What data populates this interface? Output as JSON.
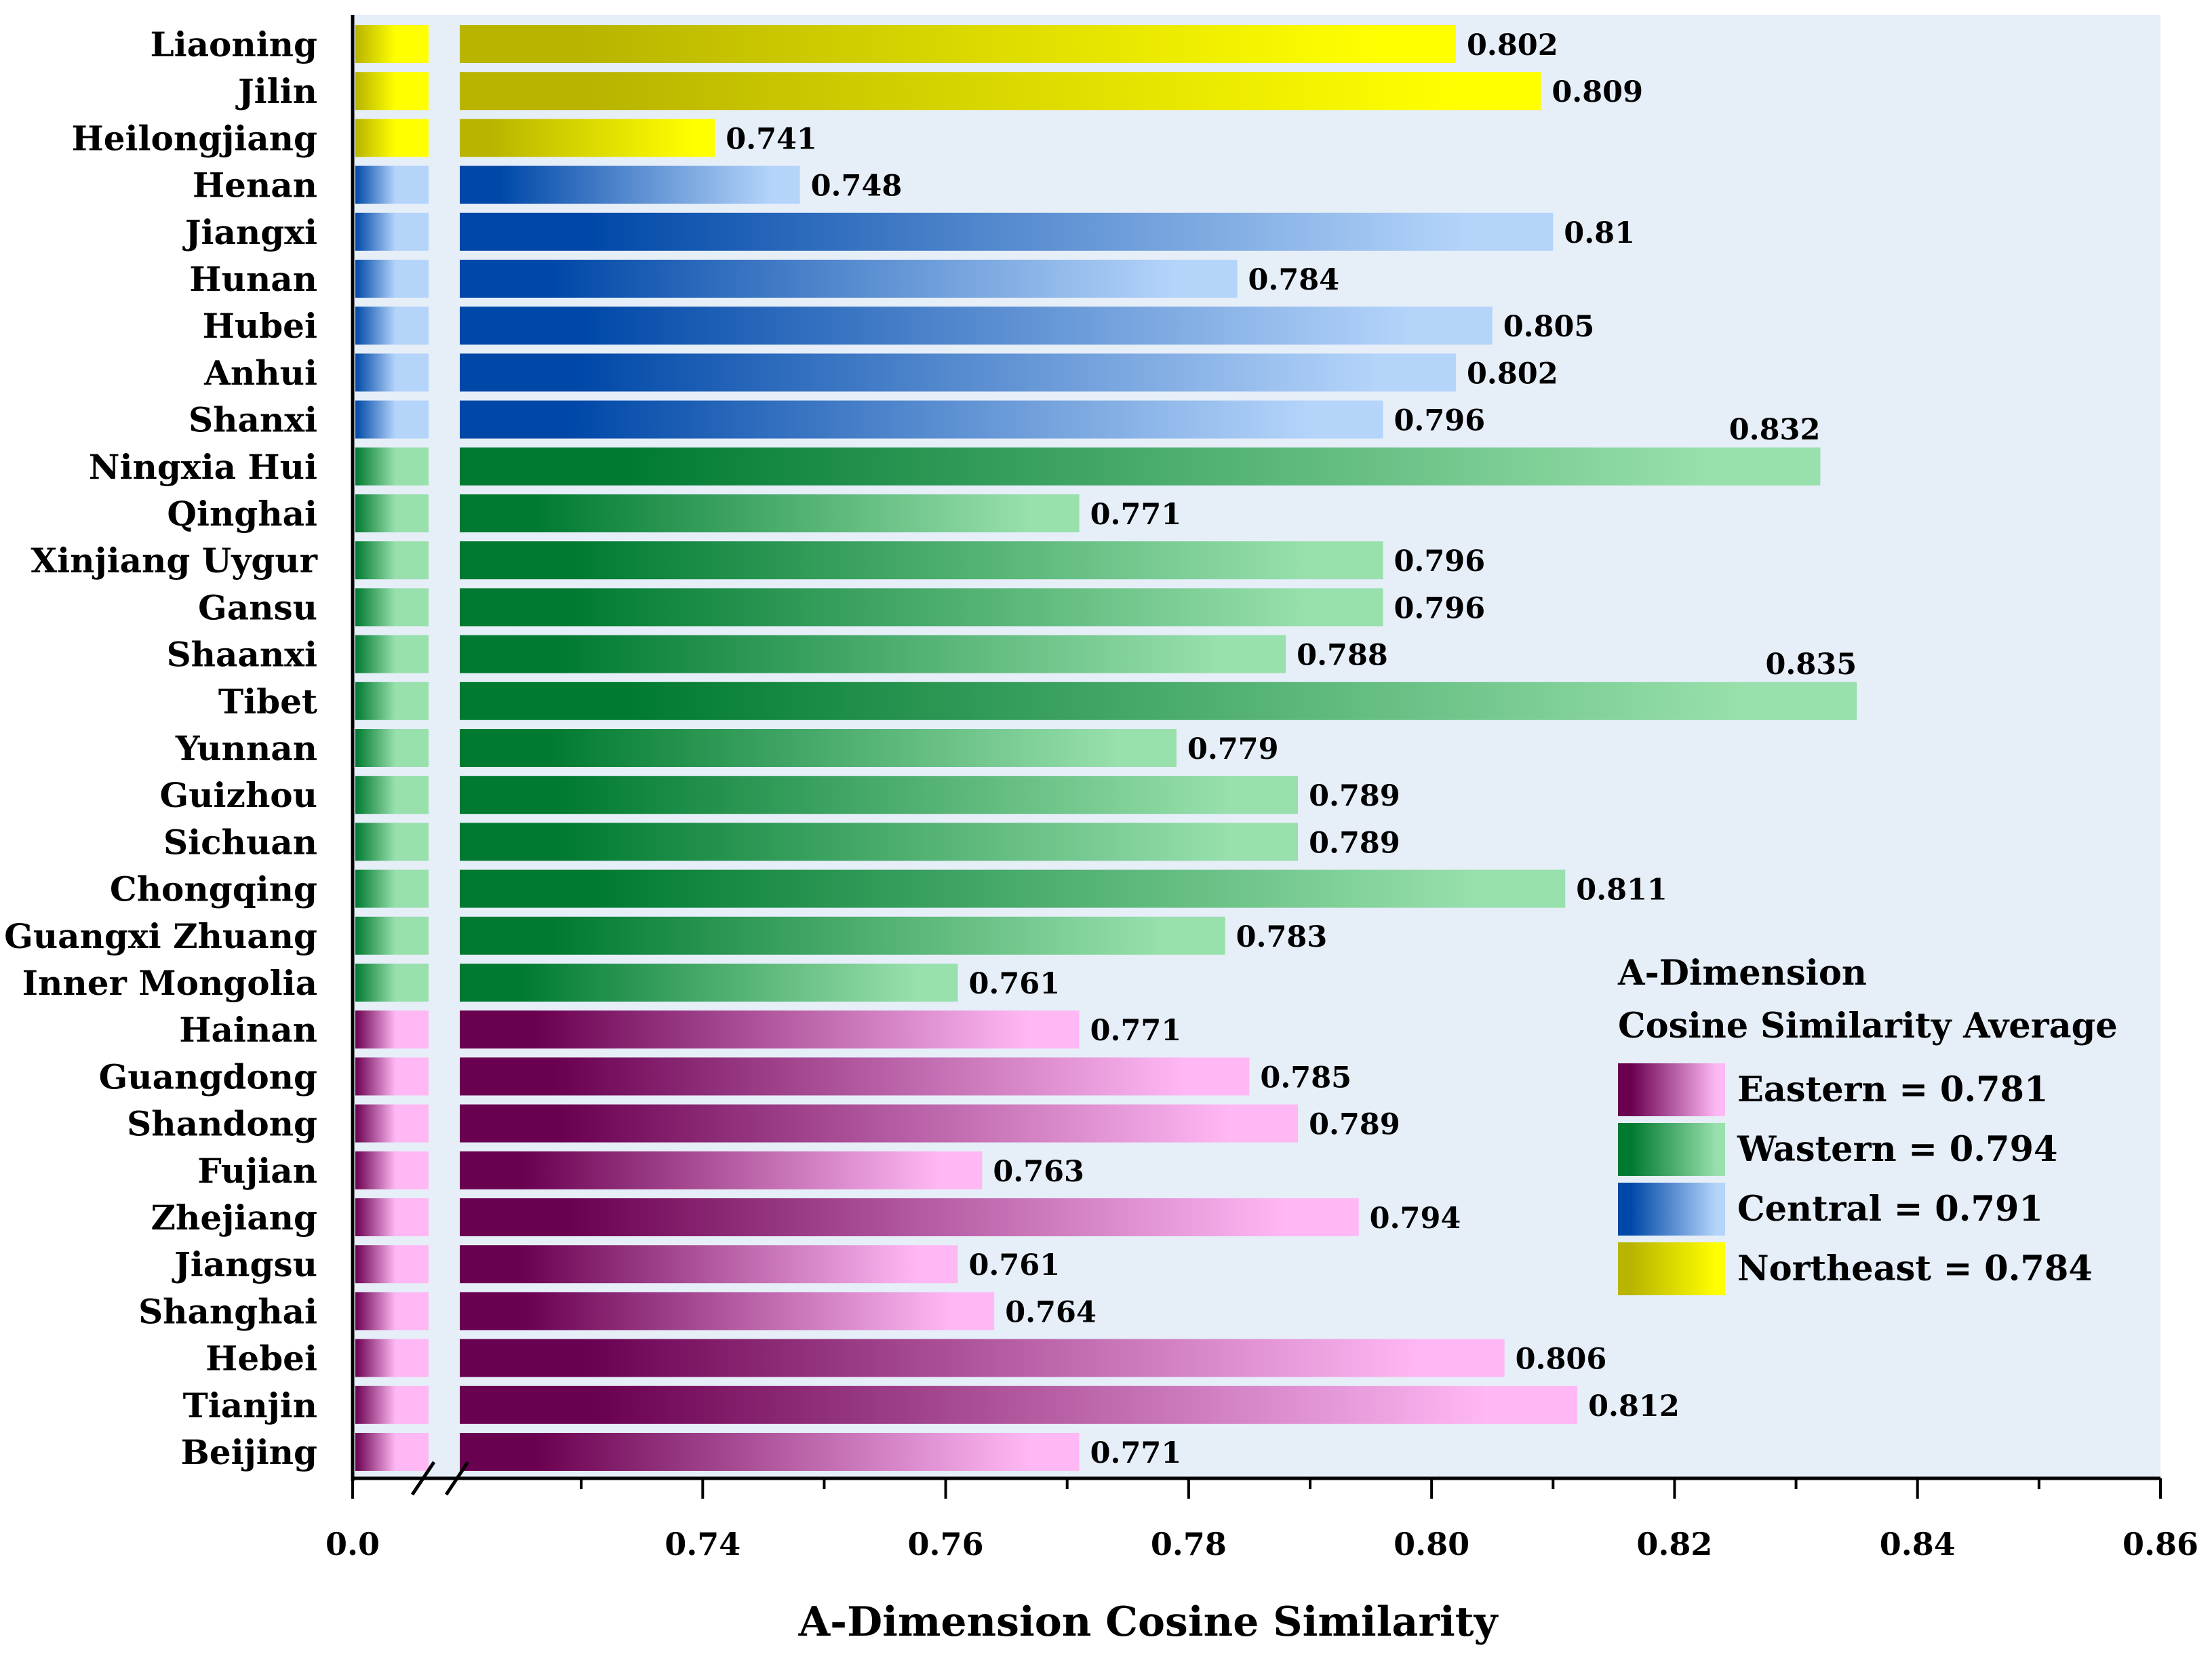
{
  "chart_data": {
    "type": "bar",
    "orientation": "horizontal",
    "xlabel": "A-Dimension Cosine Similarity",
    "ylabel": "",
    "axis_break": true,
    "xlim": [
      0.72,
      0.86
    ],
    "x_ticks": [
      "0.0",
      "0.74",
      "0.76",
      "0.78",
      "0.80",
      "0.82",
      "0.84",
      "0.86"
    ],
    "x_tick_values": [
      0.0,
      0.74,
      0.76,
      0.78,
      0.8,
      0.82,
      0.84,
      0.86
    ],
    "minor_tick_values": [
      0.73,
      0.75,
      0.77,
      0.79,
      0.81,
      0.83,
      0.85
    ],
    "categories": [
      "Liaoning",
      "Jilin",
      "Heilongjiang",
      "Henan",
      "Jiangxi",
      "Hunan",
      "Hubei",
      "Anhui",
      "Shanxi",
      "Ningxia Hui",
      "Qinghai",
      "Xinjiang Uygur",
      "Gansu",
      "Shaanxi",
      "Tibet",
      "Yunnan",
      "Guizhou",
      "Sichuan",
      "Chongqing",
      "Guangxi Zhuang",
      "Inner Mongolia",
      "Hainan",
      "Guangdong",
      "Shandong",
      "Fujian",
      "Zhejiang",
      "Jiangsu",
      "Shanghai",
      "Hebei",
      "Tianjin",
      "Beijing"
    ],
    "values": [
      0.802,
      0.809,
      0.741,
      0.748,
      0.81,
      0.784,
      0.805,
      0.802,
      0.796,
      0.832,
      0.771,
      0.796,
      0.796,
      0.788,
      0.835,
      0.779,
      0.789,
      0.789,
      0.811,
      0.783,
      0.761,
      0.771,
      0.785,
      0.789,
      0.763,
      0.794,
      0.761,
      0.764,
      0.806,
      0.812,
      0.771
    ],
    "value_labels": [
      "0.802",
      "0.809",
      "0.741",
      "0.748",
      "0.81",
      "0.784",
      "0.805",
      "0.802",
      "0.796",
      "0.832",
      "0.771",
      "0.796",
      "0.796",
      "0.788",
      "0.835",
      "0.779",
      "0.789",
      "0.789",
      "0.811",
      "0.783",
      "0.761",
      "0.771",
      "0.785",
      "0.789",
      "0.763",
      "0.794",
      "0.761",
      "0.764",
      "0.806",
      "0.812",
      "0.771"
    ],
    "groups": [
      "Northeast",
      "Northeast",
      "Northeast",
      "Central",
      "Central",
      "Central",
      "Central",
      "Central",
      "Central",
      "Western",
      "Western",
      "Western",
      "Western",
      "Western",
      "Western",
      "Western",
      "Western",
      "Western",
      "Western",
      "Western",
      "Western",
      "Eastern",
      "Eastern",
      "Eastern",
      "Eastern",
      "Eastern",
      "Eastern",
      "Eastern",
      "Eastern",
      "Eastern",
      "Eastern"
    ],
    "label_above": [
      9,
      14
    ],
    "colors": {
      "Eastern": [
        "#6a0050",
        "#ffb8f4"
      ],
      "Western": [
        "#007a30",
        "#98e0ac"
      ],
      "Central": [
        "#0048a8",
        "#b4d4fa"
      ],
      "Northeast": [
        "#b8b400",
        "#ffff00"
      ]
    },
    "plot_background": "#e6eef8",
    "legend": {
      "position": "lower-right",
      "title_line1": "A-Dimension",
      "title_line2": "Cosine Similarity Average",
      "entries": [
        {
          "group": "Eastern",
          "label": "Eastern = 0.781",
          "value": 0.781
        },
        {
          "group": "Western",
          "label": "Wastern = 0.794",
          "value": 0.794
        },
        {
          "group": "Central",
          "label": "Central = 0.791",
          "value": 0.791
        },
        {
          "group": "Northeast",
          "label": "Northeast = 0.784",
          "value": 0.784
        }
      ]
    }
  }
}
